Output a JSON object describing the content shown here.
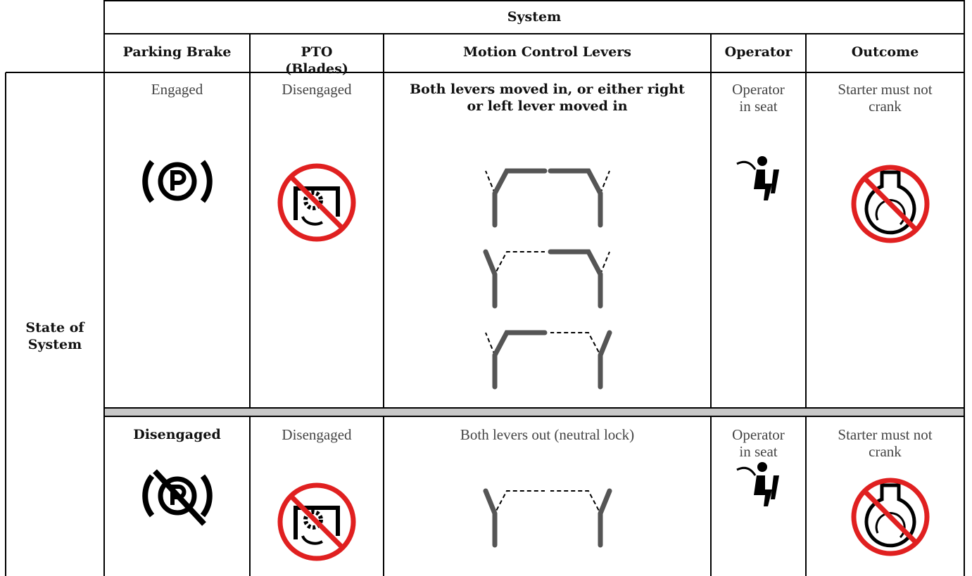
{
  "header": {
    "title": "System",
    "columns": [
      "Parking Brake",
      "PTO (Blades)",
      "Motion Control Levers",
      "Operator",
      "Outcome"
    ]
  },
  "row_header": "State of System",
  "rows": [
    [
      "Engaged",
      "Disengaged",
      "Both levers moved in, or either right or left lever moved in",
      "Operator in seat",
      "Starter must not crank"
    ],
    [
      "Disengaged",
      "Disengaged",
      "Both levers out (neutral lock)",
      "Operator in seat",
      "Starter must not crank"
    ]
  ]
}
